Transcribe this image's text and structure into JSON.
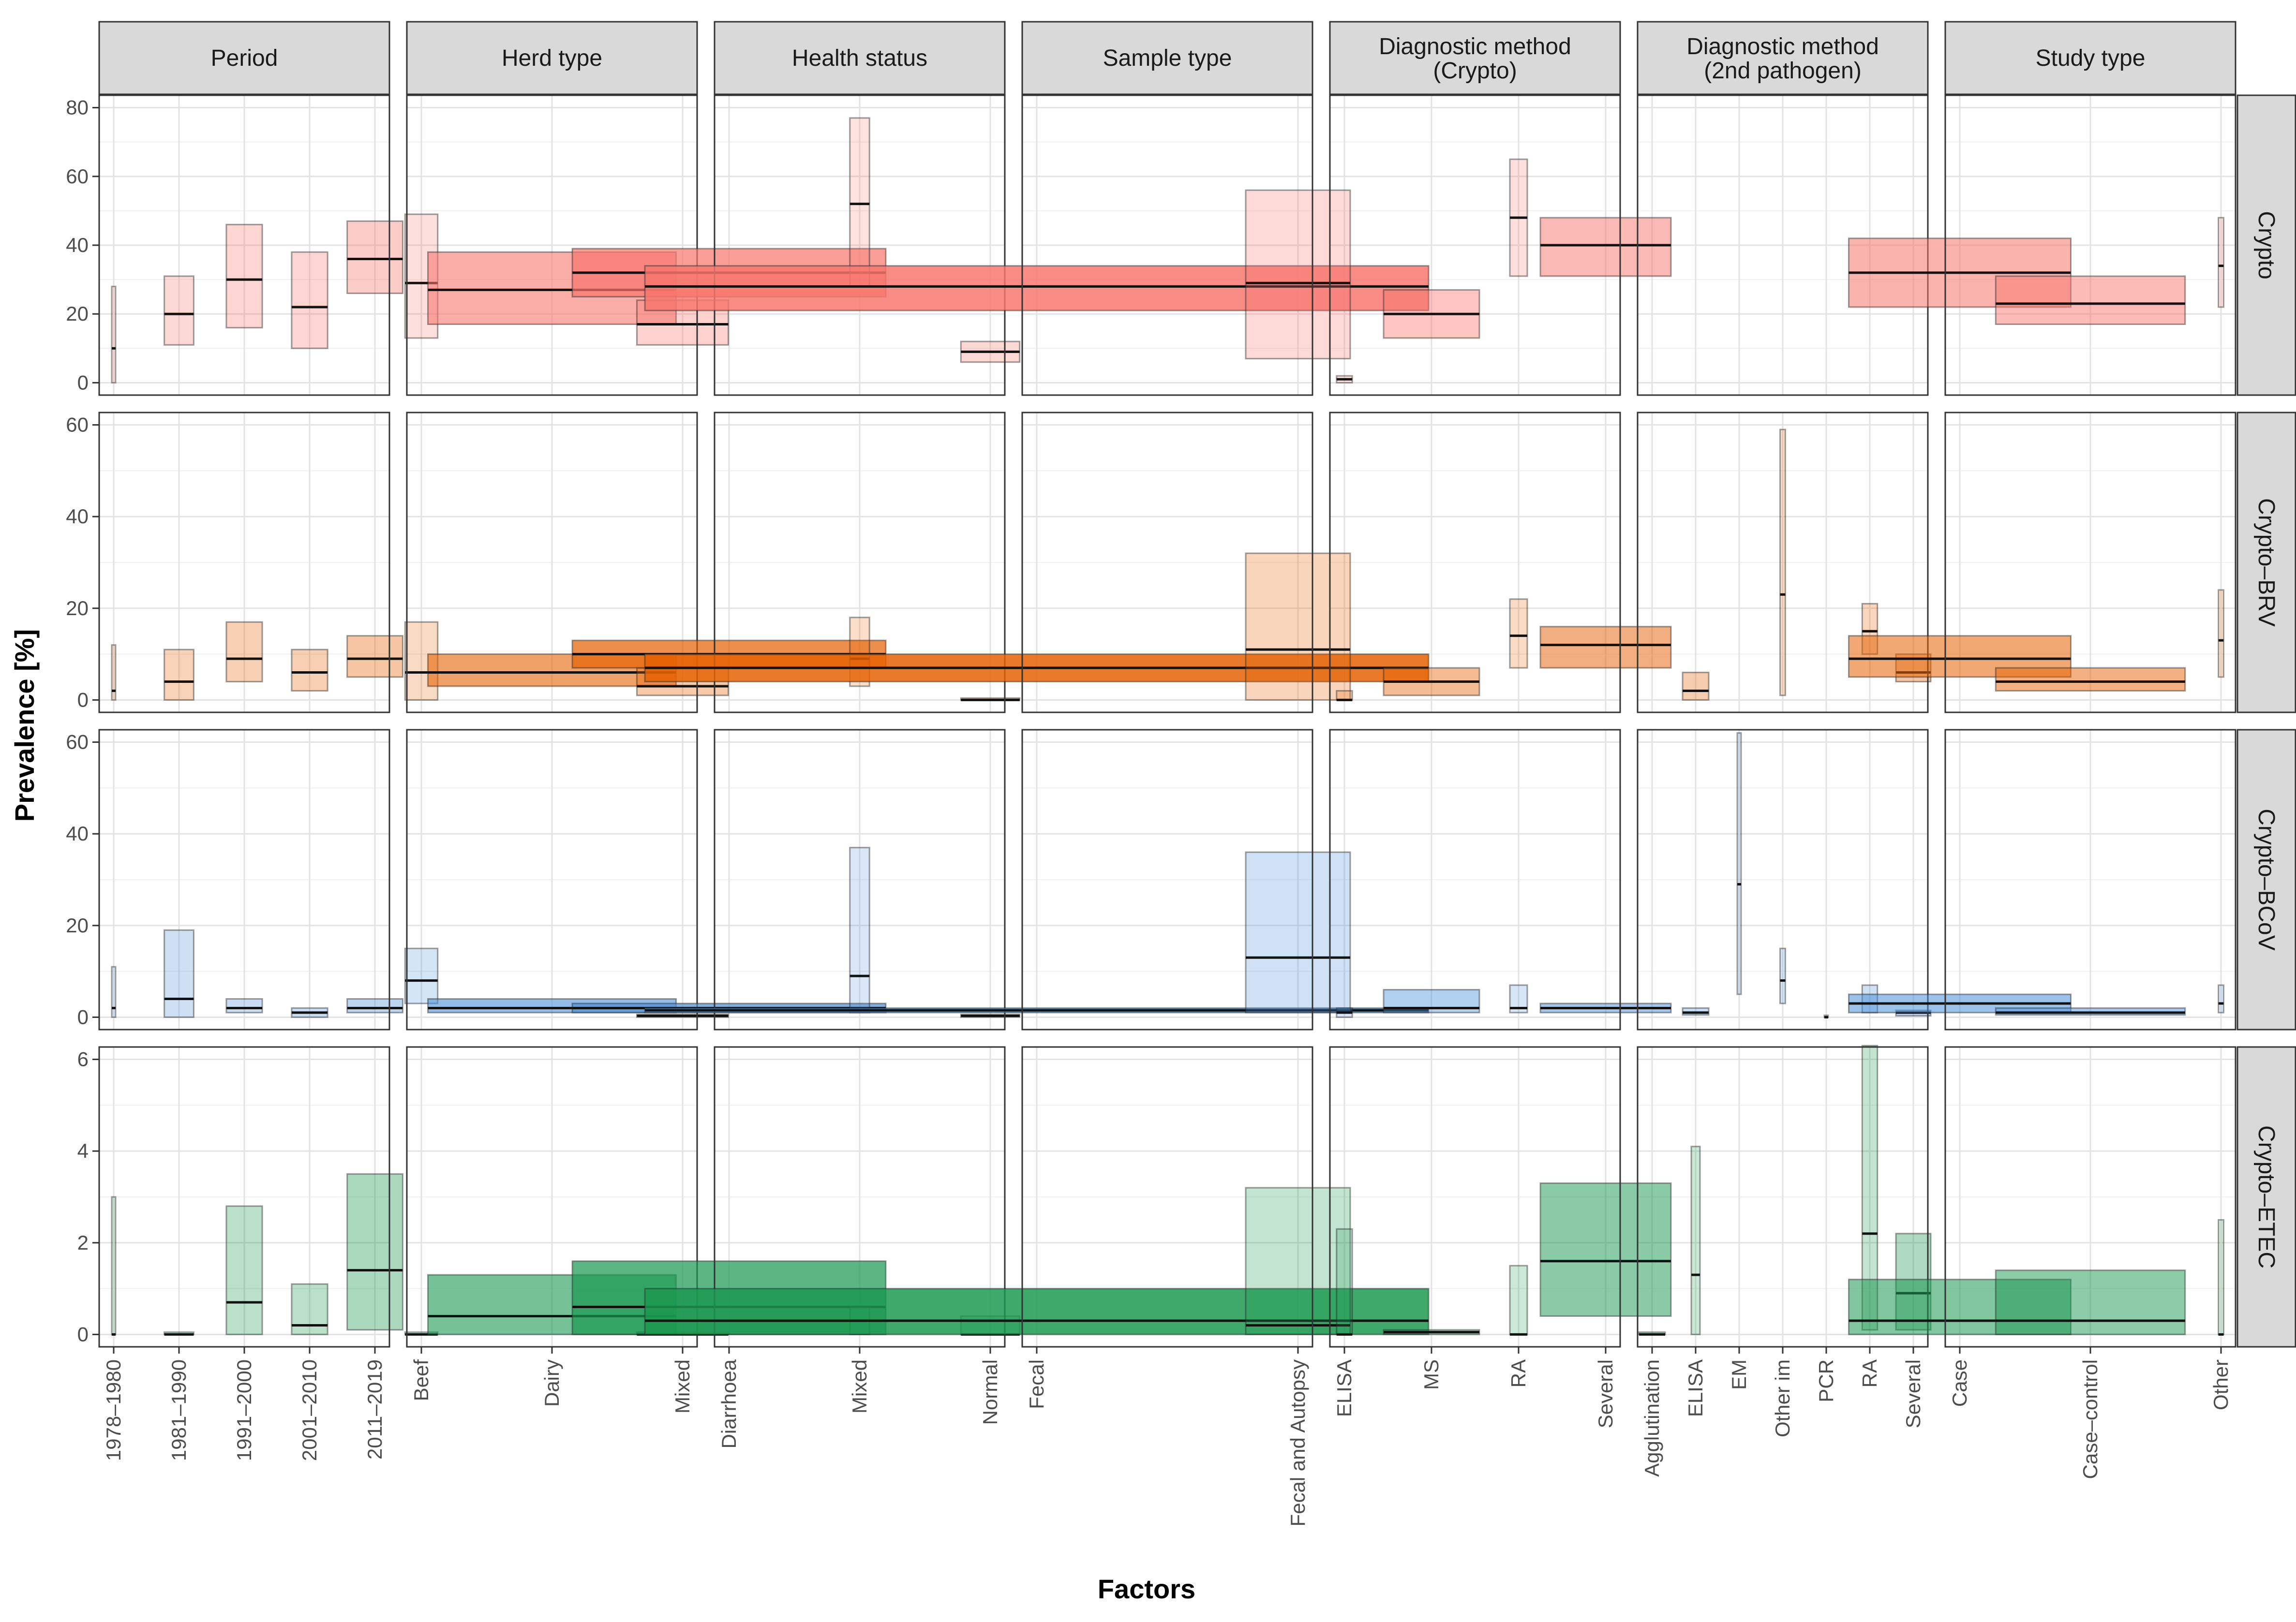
{
  "chart_data": {
    "type": "bar",
    "description_style": "faceted crossbar (prevalence range with median line)",
    "xlabel": "Factors",
    "ylabel": "Prevalence [%]",
    "columns": [
      {
        "key": "period",
        "title": "Period",
        "categories": [
          "1978–1980",
          "1981–1990",
          "1991–2000",
          "2001–2010",
          "2011–2019"
        ]
      },
      {
        "key": "herd",
        "title": "Herd type",
        "categories": [
          "Beef",
          "Dairy",
          "Mixed"
        ]
      },
      {
        "key": "health",
        "title": "Health status",
        "categories": [
          "Diarrhoea",
          "Mixed",
          "Normal"
        ]
      },
      {
        "key": "sample",
        "title": "Sample type",
        "categories": [
          "Fecal",
          "Fecal and Autopsy"
        ]
      },
      {
        "key": "diag1",
        "title": "Diagnostic method\n(Crypto)",
        "categories": [
          "ELISA",
          "MS",
          "RA",
          "Several"
        ]
      },
      {
        "key": "diag2",
        "title": "Diagnostic method\n(2nd pathogen)",
        "categories": [
          "Agglutination",
          "ELISA",
          "EM",
          "Other im",
          "PCR",
          "RA",
          "Several"
        ]
      },
      {
        "key": "study",
        "title": "Study type",
        "categories": [
          "Case",
          "Case–control",
          "Other"
        ]
      }
    ],
    "rows": [
      {
        "key": "crypto",
        "label": "Crypto",
        "color": "#f8766d",
        "ylim": [
          0,
          80
        ],
        "ticks": [
          0,
          20,
          40,
          60,
          80
        ]
      },
      {
        "key": "brv",
        "label": "Crypto–BRV",
        "color": "#e66101",
        "ylim": [
          0,
          60
        ],
        "ticks": [
          0,
          20,
          40,
          60
        ]
      },
      {
        "key": "bcov",
        "label": "Crypto–BCoV",
        "color": "#4a90d9",
        "ylim": [
          0,
          60
        ],
        "ticks": [
          0,
          20,
          40,
          60
        ]
      },
      {
        "key": "etec",
        "label": "Crypto–ETEC",
        "color": "#1a9850",
        "ylim": [
          0,
          6
        ],
        "ticks": [
          0,
          2,
          4,
          6
        ]
      }
    ],
    "series": {
      "crypto": {
        "period": [
          {
            "category": "1978–1980",
            "low": 0,
            "median": 10,
            "high": 28,
            "weight": 0.04
          },
          {
            "category": "1981–1990",
            "low": 11,
            "median": 20,
            "high": 31,
            "weight": 0.45
          },
          {
            "category": "1991–2000",
            "low": 16,
            "median": 30,
            "high": 46,
            "weight": 0.55
          },
          {
            "category": "2001–2010",
            "low": 10,
            "median": 22,
            "high": 38,
            "weight": 0.55
          },
          {
            "category": "2011–2019",
            "low": 26,
            "median": 36,
            "high": 47,
            "weight": 0.85
          }
        ],
        "herd": [
          {
            "category": "Beef",
            "low": 13,
            "median": 29,
            "high": 49,
            "weight": 0.25
          },
          {
            "category": "Dairy",
            "low": 17,
            "median": 27,
            "high": 38,
            "weight": 1.9
          },
          {
            "category": "Mixed",
            "low": 11,
            "median": 17,
            "high": 24,
            "weight": 0.7
          }
        ],
        "health": [
          {
            "category": "Diarrhoea",
            "low": 25,
            "median": 32,
            "high": 39,
            "weight": 2.4
          },
          {
            "category": "Mixed",
            "low": 28,
            "median": 52,
            "high": 77,
            "weight": 0.15
          },
          {
            "category": "Normal",
            "low": 6,
            "median": 9,
            "high": 12,
            "weight": 0.45
          }
        ],
        "sample": [
          {
            "category": "Fecal",
            "low": 21,
            "median": 28,
            "high": 34,
            "weight": 3.0
          },
          {
            "category": "Fecal and Autopsy",
            "low": 7,
            "median": 29,
            "high": 56,
            "weight": 0.4
          }
        ],
        "diag1": [
          {
            "category": "ELISA",
            "low": 0,
            "median": 1,
            "high": 2,
            "weight": 0.18
          },
          {
            "category": "MS",
            "low": 13,
            "median": 20,
            "high": 27,
            "weight": 1.1
          },
          {
            "category": "RA",
            "low": 31,
            "median": 48,
            "high": 65,
            "weight": 0.2
          },
          {
            "category": "Several",
            "low": 31,
            "median": 40,
            "high": 48,
            "weight": 1.5
          }
        ],
        "diag2": [],
        "study": [
          {
            "category": "Case",
            "low": 22,
            "median": 32,
            "high": 42,
            "weight": 1.7
          },
          {
            "category": "Case–control",
            "low": 17,
            "median": 23,
            "high": 31,
            "weight": 1.45
          },
          {
            "category": "Other",
            "low": 22,
            "median": 34,
            "high": 48,
            "weight": 0.04
          }
        ]
      },
      "brv": {
        "period": [
          {
            "category": "1978–1980",
            "low": 0,
            "median": 2,
            "high": 12,
            "weight": 0.04
          },
          {
            "category": "1981–1990",
            "low": 0,
            "median": 4,
            "high": 11,
            "weight": 0.45
          },
          {
            "category": "1991–2000",
            "low": 4,
            "median": 9,
            "high": 17,
            "weight": 0.55
          },
          {
            "category": "2001–2010",
            "low": 2,
            "median": 6,
            "high": 11,
            "weight": 0.55
          },
          {
            "category": "2011–2019",
            "low": 5,
            "median": 9,
            "high": 14,
            "weight": 0.85
          }
        ],
        "herd": [
          {
            "category": "Beef",
            "low": 0,
            "median": 6,
            "high": 17,
            "weight": 0.25
          },
          {
            "category": "Dairy",
            "low": 3,
            "median": 6,
            "high": 10,
            "weight": 1.9
          },
          {
            "category": "Mixed",
            "low": 1,
            "median": 3,
            "high": 7,
            "weight": 0.7
          }
        ],
        "health": [
          {
            "category": "Diarrhoea",
            "low": 7,
            "median": 10,
            "high": 13,
            "weight": 2.4
          },
          {
            "category": "Mixed",
            "low": 3,
            "median": 9,
            "high": 18,
            "weight": 0.15
          },
          {
            "category": "Normal",
            "low": 0,
            "median": 0,
            "high": 0.4,
            "weight": 0.45
          }
        ],
        "sample": [
          {
            "category": "Fecal",
            "low": 4,
            "median": 7,
            "high": 10,
            "weight": 3.0
          },
          {
            "category": "Fecal and Autopsy",
            "low": 0,
            "median": 11,
            "high": 32,
            "weight": 0.4
          }
        ],
        "diag1": [
          {
            "category": "ELISA",
            "low": 0,
            "median": 0,
            "high": 2,
            "weight": 0.18
          },
          {
            "category": "MS",
            "low": 1,
            "median": 4,
            "high": 7,
            "weight": 1.1
          },
          {
            "category": "RA",
            "low": 7,
            "median": 14,
            "high": 22,
            "weight": 0.2
          },
          {
            "category": "Several",
            "low": 7,
            "median": 12,
            "high": 16,
            "weight": 1.5
          }
        ],
        "diag2": [
          {
            "category": "ELISA",
            "low": 0,
            "median": 2,
            "high": 6,
            "weight": 0.6
          },
          {
            "category": "Other im",
            "low": 1,
            "median": 23,
            "high": 59,
            "weight": 0.12
          },
          {
            "category": "RA",
            "low": 10,
            "median": 15,
            "high": 21,
            "weight": 0.35
          },
          {
            "category": "Several",
            "low": 4,
            "median": 6,
            "high": 10,
            "weight": 0.8
          }
        ],
        "study": [
          {
            "category": "Case",
            "low": 5,
            "median": 9,
            "high": 14,
            "weight": 1.7
          },
          {
            "category": "Case–control",
            "low": 2,
            "median": 4,
            "high": 7,
            "weight": 1.45
          },
          {
            "category": "Other",
            "low": 5,
            "median": 13,
            "high": 24,
            "weight": 0.04
          }
        ]
      },
      "bcov": {
        "period": [
          {
            "category": "1978–1980",
            "low": 0,
            "median": 2,
            "high": 11,
            "weight": 0.04
          },
          {
            "category": "1981–1990",
            "low": 0,
            "median": 4,
            "high": 19,
            "weight": 0.45
          },
          {
            "category": "1991–2000",
            "low": 1,
            "median": 2,
            "high": 4,
            "weight": 0.55
          },
          {
            "category": "2001–2010",
            "low": 0,
            "median": 1,
            "high": 2,
            "weight": 0.55
          },
          {
            "category": "2011–2019",
            "low": 1,
            "median": 2,
            "high": 4,
            "weight": 0.85
          }
        ],
        "herd": [
          {
            "category": "Beef",
            "low": 3,
            "median": 8,
            "high": 15,
            "weight": 0.25
          },
          {
            "category": "Dairy",
            "low": 1,
            "median": 2,
            "high": 4,
            "weight": 1.9
          },
          {
            "category": "Mixed",
            "low": 0,
            "median": 0.3,
            "high": 0.6,
            "weight": 0.7
          }
        ],
        "health": [
          {
            "category": "Diarrhoea",
            "low": 1,
            "median": 2,
            "high": 3,
            "weight": 2.4
          },
          {
            "category": "Mixed",
            "low": 1,
            "median": 9,
            "high": 37,
            "weight": 0.15
          },
          {
            "category": "Normal",
            "low": 0,
            "median": 0.3,
            "high": 0.6,
            "weight": 0.45
          }
        ],
        "sample": [
          {
            "category": "Fecal",
            "low": 1,
            "median": 1.5,
            "high": 2,
            "weight": 3.0
          },
          {
            "category": "Fecal and Autopsy",
            "low": 1,
            "median": 13,
            "high": 36,
            "weight": 0.4
          }
        ],
        "diag1": [
          {
            "category": "ELISA",
            "low": 0,
            "median": 1,
            "high": 2,
            "weight": 0.18
          },
          {
            "category": "MS",
            "low": 1,
            "median": 2,
            "high": 6,
            "weight": 1.1
          },
          {
            "category": "RA",
            "low": 1,
            "median": 2,
            "high": 7,
            "weight": 0.2
          },
          {
            "category": "Several",
            "low": 1,
            "median": 2,
            "high": 3,
            "weight": 1.5
          }
        ],
        "diag2": [
          {
            "category": "ELISA",
            "low": 0.5,
            "median": 1,
            "high": 2,
            "weight": 0.6
          },
          {
            "category": "EM",
            "low": 5,
            "median": 29,
            "high": 62,
            "weight": 0.05
          },
          {
            "category": "Other im",
            "low": 3,
            "median": 8,
            "high": 15,
            "weight": 0.12
          },
          {
            "category": "PCR",
            "low": 0,
            "median": 0,
            "high": 0.3,
            "weight": 0.05
          },
          {
            "category": "RA",
            "low": 1,
            "median": 3,
            "high": 7,
            "weight": 0.35
          },
          {
            "category": "Several",
            "low": 0.3,
            "median": 1,
            "high": 1.5,
            "weight": 0.8
          }
        ],
        "study": [
          {
            "category": "Case",
            "low": 1,
            "median": 3,
            "high": 5,
            "weight": 1.7
          },
          {
            "category": "Case–control",
            "low": 0.5,
            "median": 1,
            "high": 2,
            "weight": 1.45
          },
          {
            "category": "Other",
            "low": 1,
            "median": 3,
            "high": 7,
            "weight": 0.04
          }
        ]
      },
      "etec": {
        "period": [
          {
            "category": "1978–1980",
            "low": 0,
            "median": 0,
            "high": 3,
            "weight": 0.04
          },
          {
            "category": "1981–1990",
            "low": 0,
            "median": 0,
            "high": 0.05,
            "weight": 0.45
          },
          {
            "category": "1991–2000",
            "low": 0,
            "median": 0.7,
            "high": 2.8,
            "weight": 0.55
          },
          {
            "category": "2001–2010",
            "low": 0,
            "median": 0.2,
            "high": 1.1,
            "weight": 0.55
          },
          {
            "category": "2011–2019",
            "low": 0.1,
            "median": 1.4,
            "high": 3.5,
            "weight": 0.85
          }
        ],
        "herd": [
          {
            "category": "Beef",
            "low": 0,
            "median": 0,
            "high": 0.05,
            "weight": 0.25
          },
          {
            "category": "Dairy",
            "low": 0,
            "median": 0.4,
            "high": 1.3,
            "weight": 1.9
          },
          {
            "category": "Mixed",
            "low": 0,
            "median": 0,
            "high": 0.05,
            "weight": 0.7
          }
        ],
        "health": [
          {
            "category": "Diarrhoea",
            "low": 0,
            "median": 0.6,
            "high": 1.6,
            "weight": 2.4
          },
          {
            "category": "Mixed",
            "low": 0,
            "median": 0.3,
            "high": 0.6,
            "weight": 0.15
          },
          {
            "category": "Normal",
            "low": 0,
            "median": 0,
            "high": 0.4,
            "weight": 0.45
          }
        ],
        "sample": [
          {
            "category": "Fecal",
            "low": 0,
            "median": 0.3,
            "high": 1.0,
            "weight": 3.0
          },
          {
            "category": "Fecal and Autopsy",
            "low": 0,
            "median": 0.2,
            "high": 3.2,
            "weight": 0.4
          }
        ],
        "diag1": [
          {
            "category": "ELISA",
            "low": 0,
            "median": 0,
            "high": 2.3,
            "weight": 0.18
          },
          {
            "category": "MS",
            "low": 0,
            "median": 0.05,
            "high": 0.1,
            "weight": 1.1
          },
          {
            "category": "RA",
            "low": 0,
            "median": 0,
            "high": 1.5,
            "weight": 0.2
          },
          {
            "category": "Several",
            "low": 0.4,
            "median": 1.6,
            "high": 3.3,
            "weight": 1.5
          }
        ],
        "diag2": [
          {
            "category": "Agglutination",
            "low": 0,
            "median": 0,
            "high": 0.05,
            "weight": 0.6
          },
          {
            "category": "ELISA",
            "low": 0,
            "median": 1.3,
            "high": 4.1,
            "weight": 0.2
          },
          {
            "category": "RA",
            "low": 0.1,
            "median": 2.2,
            "high": 6.3,
            "weight": 0.35
          },
          {
            "category": "Several",
            "low": 0.1,
            "median": 0.9,
            "high": 2.2,
            "weight": 0.8
          }
        ],
        "study": [
          {
            "category": "Case",
            "low": 0,
            "median": 0.3,
            "high": 1.2,
            "weight": 1.7
          },
          {
            "category": "Case–control",
            "low": 0,
            "median": 0.3,
            "high": 1.4,
            "weight": 1.45
          },
          {
            "category": "Other",
            "low": 0,
            "median": 0,
            "high": 2.5,
            "weight": 0.04
          }
        ]
      }
    }
  }
}
